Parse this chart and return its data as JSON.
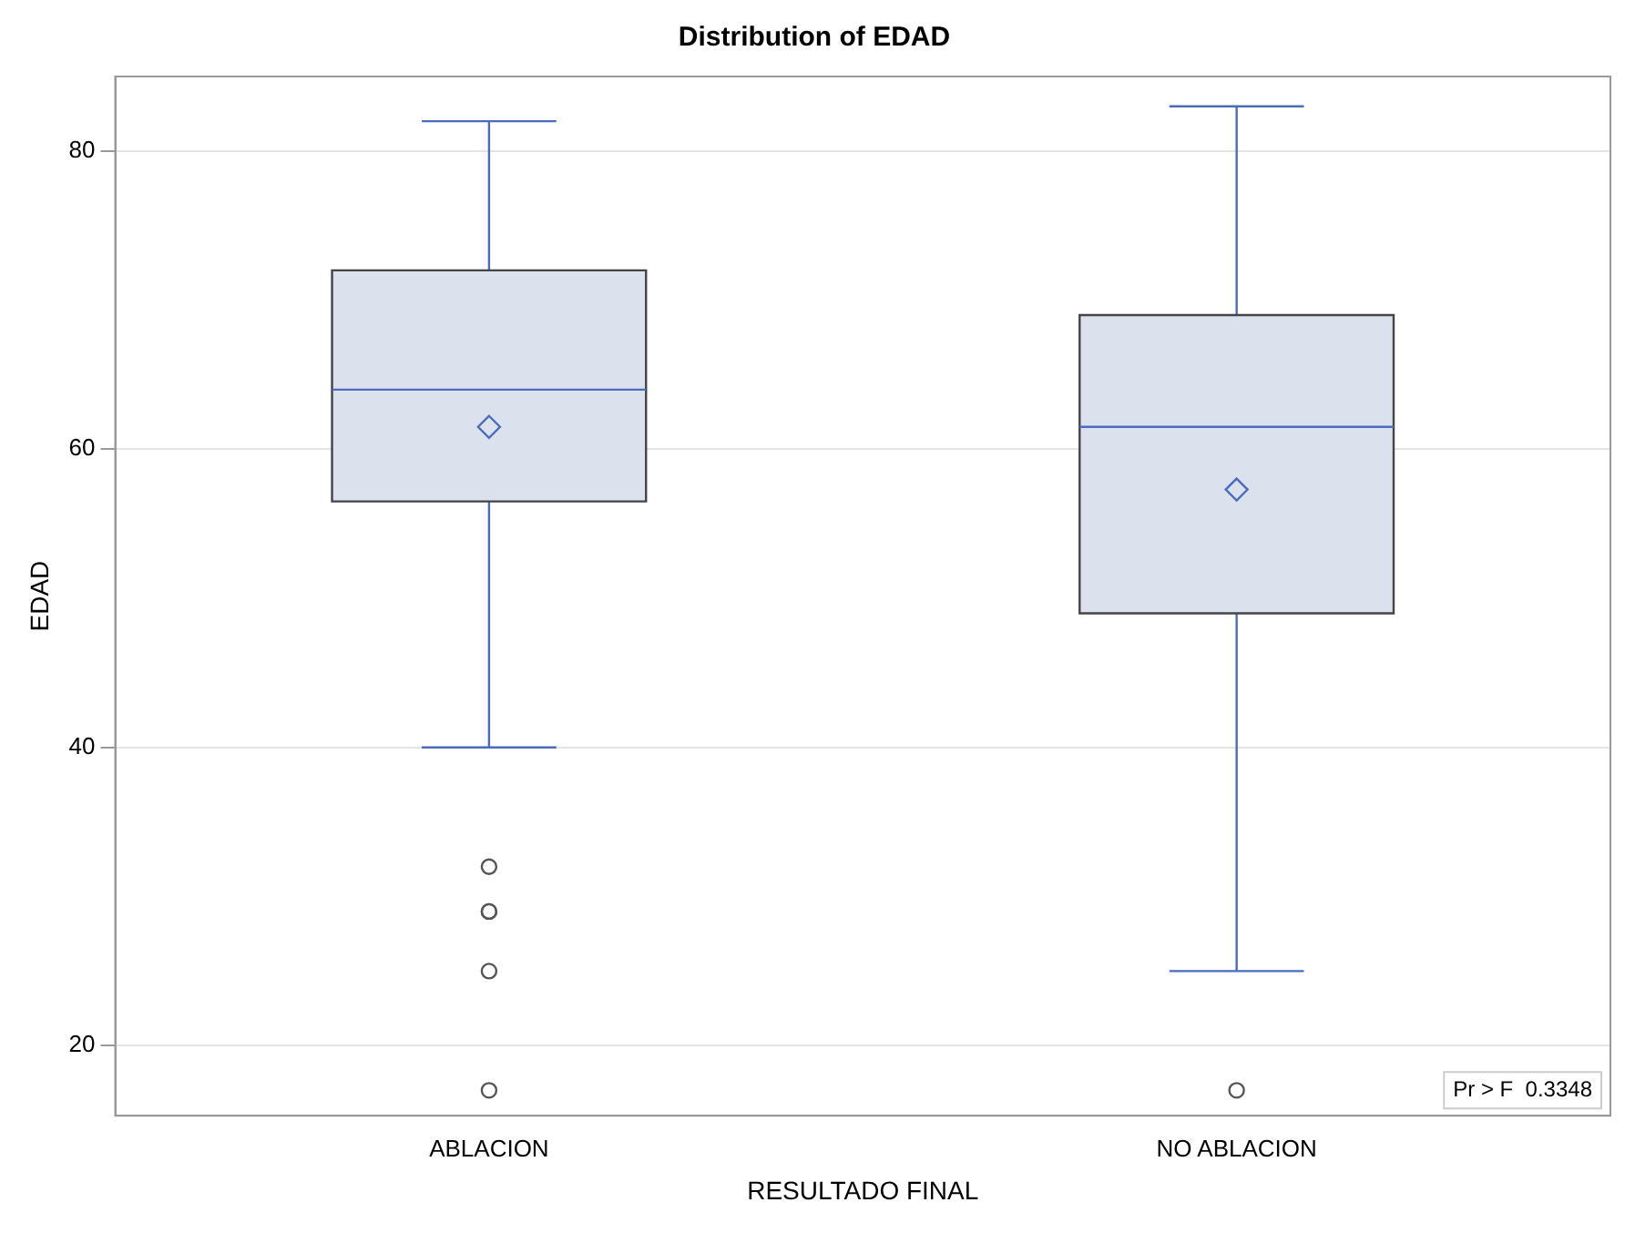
{
  "chart_data": {
    "type": "box",
    "title": "Distribution of EDAD",
    "xlabel": "RESULTADO FINAL",
    "ylabel": "EDAD",
    "categories": [
      "ABLACION",
      "NO ABLACION"
    ],
    "series": [
      {
        "color": "#dbe2ed",
        "boxes": [
          {
            "low": 40,
            "q1": 56.5,
            "median": 64,
            "q3": 72,
            "high": 82,
            "mean": 61.5,
            "outliers": [
              32,
              29,
              29,
              25,
              17
            ]
          },
          {
            "low": 25,
            "q1": 49,
            "median": 61.5,
            "q3": 69,
            "high": 83,
            "mean": 57.3,
            "outliers": [
              17
            ]
          }
        ]
      }
    ],
    "ylim": [
      15.3,
      85
    ],
    "yticks": [
      20,
      40,
      60,
      80
    ],
    "grid": "y",
    "legend": false,
    "annotations": [
      "Pr > F  0.3348"
    ]
  }
}
